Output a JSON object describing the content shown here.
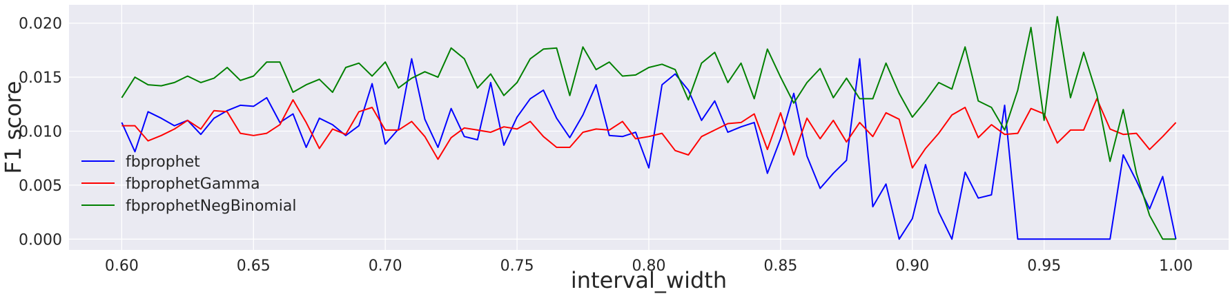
{
  "chart_data": {
    "type": "line",
    "xlabel": "interval_width",
    "ylabel": "F1 score",
    "xlim": [
      0.58,
      1.02
    ],
    "ylim": [
      -0.001,
      0.0217
    ],
    "xticks": [
      0.6,
      0.65,
      0.7,
      0.75,
      0.8,
      0.85,
      0.9,
      0.95,
      1.0
    ],
    "yticks": [
      0.0,
      0.005,
      0.01,
      0.015,
      0.02
    ],
    "xtick_labels": [
      "0.60",
      "0.65",
      "0.70",
      "0.75",
      "0.80",
      "0.85",
      "0.90",
      "0.95",
      "1.00"
    ],
    "ytick_labels": [
      "0.000",
      "0.005",
      "0.010",
      "0.015",
      "0.020"
    ],
    "grid": true,
    "legend_position": "lower-left",
    "x": [
      0.6,
      0.605,
      0.61,
      0.615,
      0.62,
      0.625,
      0.63,
      0.635,
      0.64,
      0.645,
      0.65,
      0.655,
      0.66,
      0.665,
      0.67,
      0.675,
      0.68,
      0.685,
      0.69,
      0.695,
      0.7,
      0.705,
      0.71,
      0.715,
      0.72,
      0.725,
      0.73,
      0.735,
      0.74,
      0.745,
      0.75,
      0.755,
      0.76,
      0.765,
      0.77,
      0.775,
      0.78,
      0.785,
      0.79,
      0.795,
      0.8,
      0.805,
      0.81,
      0.815,
      0.82,
      0.825,
      0.83,
      0.835,
      0.84,
      0.845,
      0.85,
      0.855,
      0.86,
      0.865,
      0.87,
      0.875,
      0.88,
      0.885,
      0.89,
      0.895,
      0.9,
      0.905,
      0.91,
      0.915,
      0.92,
      0.925,
      0.93,
      0.935,
      0.94,
      0.945,
      0.95,
      0.955,
      0.96,
      0.965,
      0.97,
      0.975,
      0.98,
      0.985,
      0.99,
      0.995,
      1.0
    ],
    "series": [
      {
        "name": "fbprophet",
        "color": "#0000ff",
        "values": [
          0.0108,
          0.0081,
          0.0118,
          0.0112,
          0.0105,
          0.011,
          0.0097,
          0.0112,
          0.0119,
          0.0124,
          0.0123,
          0.0131,
          0.0108,
          0.0116,
          0.0085,
          0.0112,
          0.0106,
          0.0096,
          0.0105,
          0.0144,
          0.0088,
          0.0102,
          0.0167,
          0.0111,
          0.0085,
          0.0121,
          0.0095,
          0.0092,
          0.0145,
          0.0087,
          0.0113,
          0.013,
          0.0138,
          0.0112,
          0.0094,
          0.0115,
          0.0143,
          0.0096,
          0.0095,
          0.0099,
          0.0066,
          0.0143,
          0.0153,
          0.0138,
          0.011,
          0.0128,
          0.0099,
          0.0104,
          0.0108,
          0.0061,
          0.0093,
          0.0135,
          0.0077,
          0.0047,
          0.0061,
          0.0073,
          0.0167,
          0.003,
          0.0051,
          0.0,
          0.0019,
          0.0069,
          0.0025,
          0.0,
          0.0062,
          0.0038,
          0.0041,
          0.0124,
          0.0,
          0.0,
          0.0,
          0.0,
          0.0,
          0.0,
          0.0,
          0.0,
          0.0078,
          0.0054,
          0.0028,
          0.0058,
          0.0
        ]
      },
      {
        "name": "fbprophetGamma",
        "color": "#ff0000",
        "values": [
          0.0105,
          0.0105,
          0.0091,
          0.0096,
          0.0102,
          0.011,
          0.0102,
          0.0119,
          0.0118,
          0.0098,
          0.0096,
          0.0098,
          0.0106,
          0.0129,
          0.0108,
          0.0084,
          0.0102,
          0.0097,
          0.0118,
          0.0122,
          0.0101,
          0.0101,
          0.0109,
          0.0095,
          0.0074,
          0.0094,
          0.0103,
          0.0101,
          0.0099,
          0.0104,
          0.0102,
          0.0109,
          0.0095,
          0.0085,
          0.0085,
          0.0099,
          0.0102,
          0.0101,
          0.0109,
          0.0093,
          0.0095,
          0.0098,
          0.0082,
          0.0078,
          0.0095,
          0.0101,
          0.0107,
          0.0108,
          0.0116,
          0.0083,
          0.0117,
          0.0078,
          0.0112,
          0.0093,
          0.011,
          0.009,
          0.0108,
          0.0095,
          0.0117,
          0.0111,
          0.0066,
          0.0084,
          0.0098,
          0.0115,
          0.0122,
          0.0094,
          0.0106,
          0.0097,
          0.0098,
          0.0121,
          0.0116,
          0.0089,
          0.0101,
          0.0101,
          0.013,
          0.0102,
          0.0097,
          0.0098,
          0.0083,
          0.0095,
          0.0108
        ]
      },
      {
        "name": "fbprophetNegBinomial",
        "color": "#008000",
        "values": [
          0.0131,
          0.015,
          0.0143,
          0.0142,
          0.0145,
          0.0151,
          0.0145,
          0.0149,
          0.0159,
          0.0147,
          0.0151,
          0.0164,
          0.0164,
          0.0136,
          0.0143,
          0.0148,
          0.0136,
          0.0159,
          0.0163,
          0.0151,
          0.0164,
          0.014,
          0.0149,
          0.0155,
          0.015,
          0.0177,
          0.0167,
          0.014,
          0.0153,
          0.0133,
          0.0145,
          0.0167,
          0.0176,
          0.0177,
          0.0133,
          0.0178,
          0.0157,
          0.0164,
          0.0151,
          0.0152,
          0.0159,
          0.0162,
          0.0157,
          0.0129,
          0.0163,
          0.0173,
          0.0145,
          0.0163,
          0.013,
          0.0176,
          0.015,
          0.0126,
          0.0145,
          0.0158,
          0.0131,
          0.0149,
          0.013,
          0.013,
          0.0163,
          0.0135,
          0.0113,
          0.0128,
          0.0145,
          0.0139,
          0.0178,
          0.0128,
          0.0122,
          0.0101,
          0.0138,
          0.0196,
          0.011,
          0.0206,
          0.0131,
          0.0173,
          0.0134,
          0.0072,
          0.012,
          0.0061,
          0.0022,
          0.0,
          0.0
        ]
      }
    ]
  }
}
